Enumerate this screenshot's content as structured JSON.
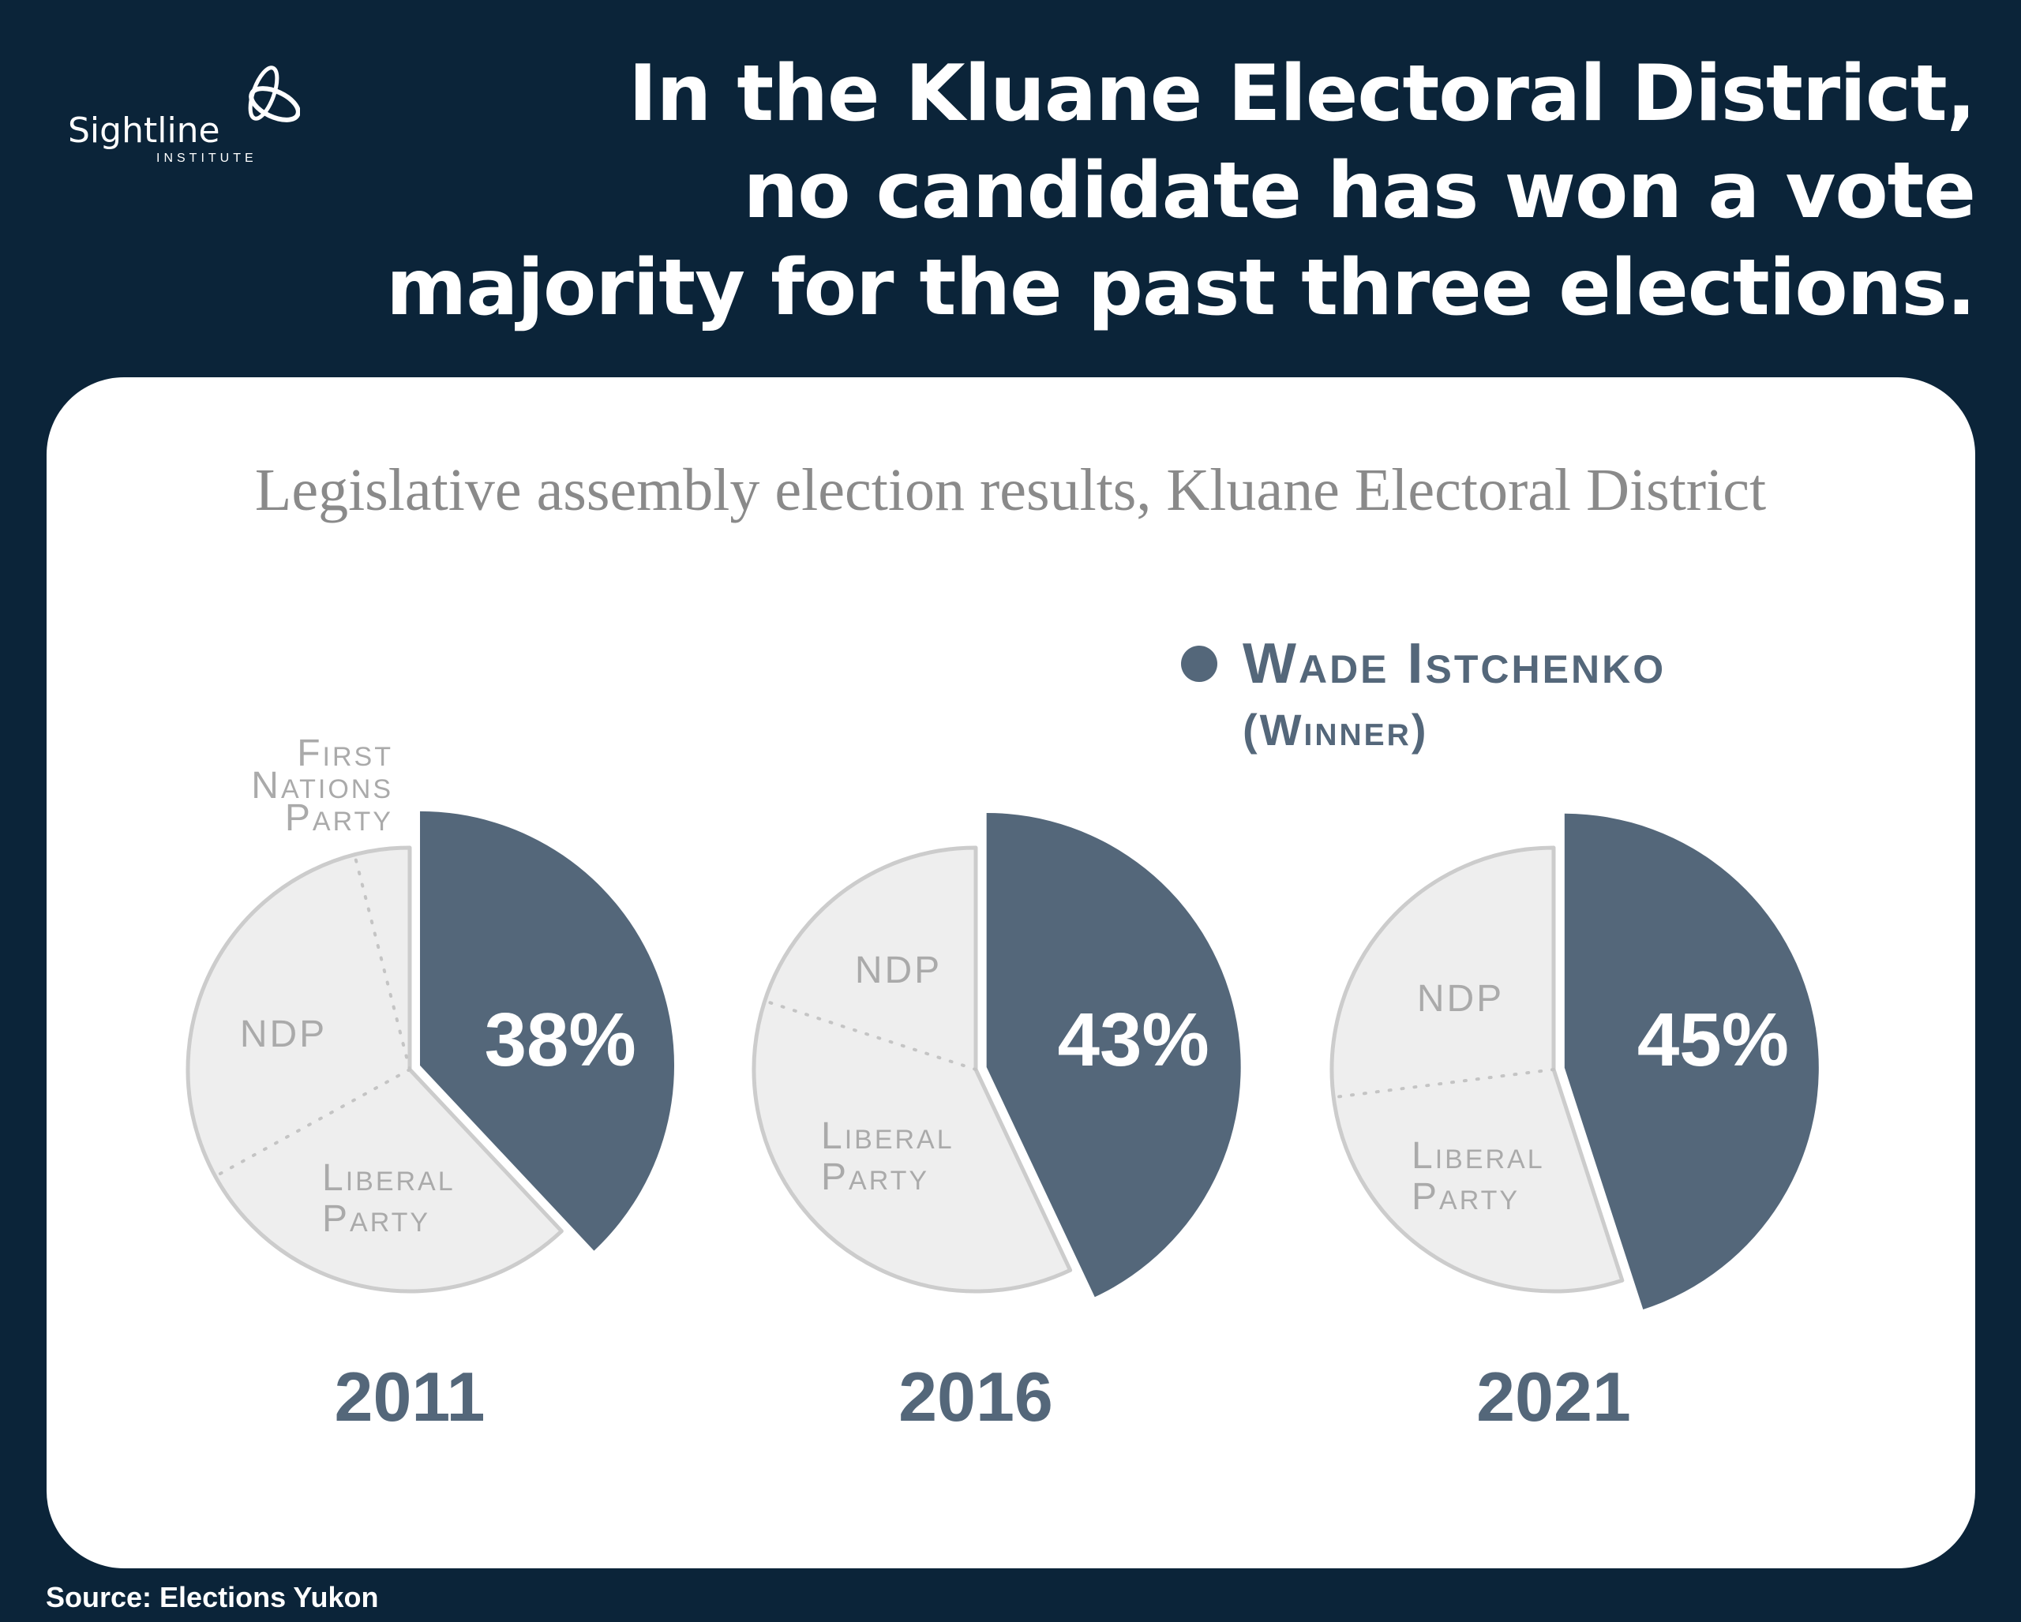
{
  "header": {
    "logo": {
      "name": "Sightline",
      "sub": "INSTITUTE"
    },
    "title_lines": [
      "In the Kluane Electoral District,",
      "no candidate has won a vote",
      "majority for the past three elections."
    ]
  },
  "footer": {
    "source": "Source: Elections Yukon"
  },
  "colors": {
    "background": "#0b2439",
    "winner": "#54677a",
    "other": "#eeeeee",
    "other_stroke": "#cccccc",
    "label": "#aaaaaa"
  },
  "chart_data": {
    "type": "pie",
    "title": "Legislative assembly election results, Kluane Electoral District",
    "legend": {
      "label": "Wade Istchenko",
      "sublabel": "(Winner)",
      "color": "#54677a",
      "position": "top-right"
    },
    "pies": [
      {
        "year": "2011",
        "winner_label": "38%",
        "segments": [
          {
            "name": "Wade Istchenko",
            "value": 38,
            "winner": true
          },
          {
            "name": "Liberal Party",
            "value": 29
          },
          {
            "name": "NDP",
            "value": 29
          },
          {
            "name": "First Nations Party",
            "value": 4
          }
        ]
      },
      {
        "year": "2016",
        "winner_label": "43%",
        "segments": [
          {
            "name": "Wade Istchenko",
            "value": 43,
            "winner": true
          },
          {
            "name": "Liberal Party",
            "value": 37
          },
          {
            "name": "NDP",
            "value": 20
          }
        ]
      },
      {
        "year": "2021",
        "winner_label": "45%",
        "segments": [
          {
            "name": "Wade Istchenko",
            "value": 45,
            "winner": true
          },
          {
            "name": "Liberal Party",
            "value": 28
          },
          {
            "name": "NDP",
            "value": 27
          }
        ]
      }
    ]
  }
}
